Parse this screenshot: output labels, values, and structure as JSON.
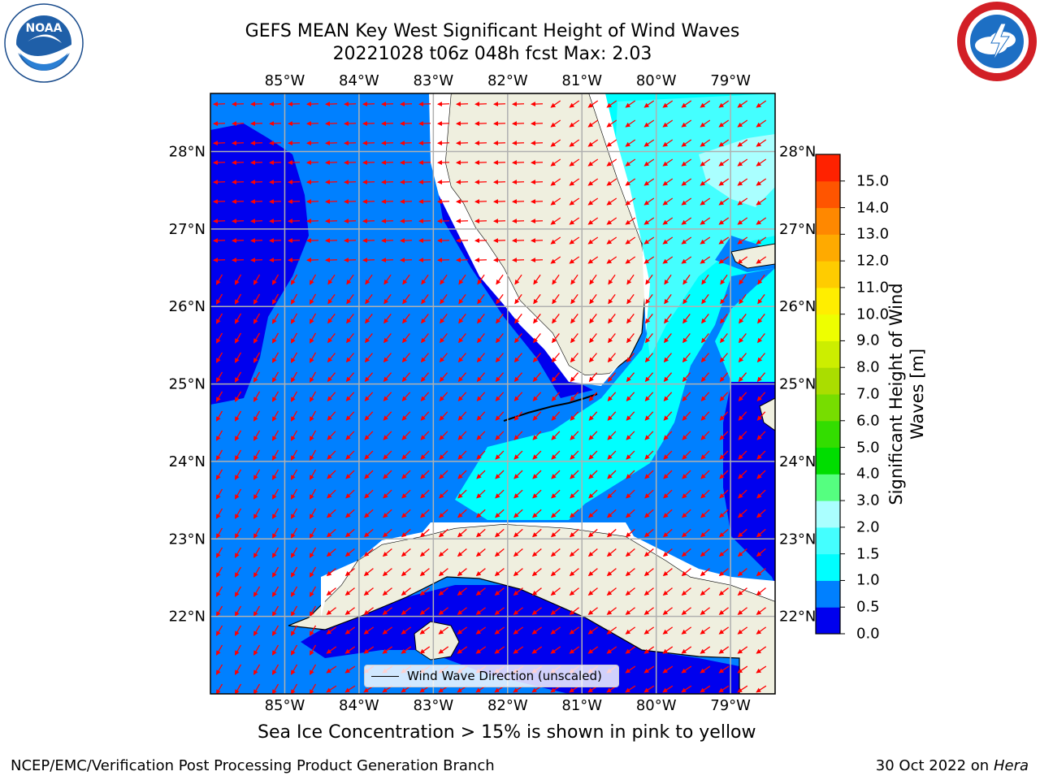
{
  "title": {
    "line1": "GEFS MEAN Key West Significant Height of Wind Waves",
    "line2": "20221028 t06z 048h fcst   Max: 2.03"
  },
  "map": {
    "lon_range": [
      -86.0,
      -78.4
    ],
    "lat_range": [
      21.0,
      28.75
    ],
    "lon_ticks": [
      "85°W",
      "84°W",
      "83°W",
      "82°W",
      "81°W",
      "80°W",
      "79°W"
    ],
    "lon_tick_values": [
      -85,
      -84,
      -83,
      -82,
      -81,
      -80,
      -79
    ],
    "lat_ticks": [
      "22°N",
      "23°N",
      "24°N",
      "25°N",
      "26°N",
      "27°N",
      "28°N"
    ],
    "lat_tick_values": [
      22,
      23,
      24,
      25,
      26,
      27,
      28
    ],
    "grid": true,
    "colors": {
      "land": "#efefdf",
      "band_0_0_5": "#0000ee",
      "band_0_5_1_0": "#0080ff",
      "band_1_0_1_5": "#00ffff",
      "band_1_5_2_0": "#44ffff",
      "band_2_0_3_0": "#aaffff",
      "arrow": "#ff0000",
      "gridline": "#b0b0b0"
    }
  },
  "legend": {
    "label": "Wind Wave Direction (unscaled)",
    "position": "lower-center"
  },
  "colorbar": {
    "title_line1": "Significant Height of Wind",
    "title_line2": "Waves [m]",
    "ticks": [
      "0.0",
      "0.5",
      "1.0",
      "1.5",
      "2.0",
      "3.0",
      "4.0",
      "5.0",
      "6.0",
      "7.0",
      "8.0",
      "9.0",
      "10.0",
      "11.0",
      "12.0",
      "13.0",
      "14.0",
      "15.0"
    ],
    "colors": [
      "#0000ee",
      "#0080ff",
      "#00ffff",
      "#44ffff",
      "#aaffff",
      "#55ff80",
      "#00dd00",
      "#33dd00",
      "#77dd00",
      "#aadd00",
      "#ccee00",
      "#eeff00",
      "#ffee00",
      "#ffcc00",
      "#ffaa00",
      "#ff8800",
      "#ff5500",
      "#ff2200"
    ]
  },
  "logos": {
    "left": "noaa-logo",
    "right": "nws-logo"
  },
  "ice_note": "Sea Ice Concentration > 15% is shown in pink to yellow",
  "footer": {
    "left": "NCEP/EMC/Verification Post Processing Product Generation Branch",
    "right_prefix": "30 Oct 2022 on ",
    "right_host": "Hera"
  }
}
